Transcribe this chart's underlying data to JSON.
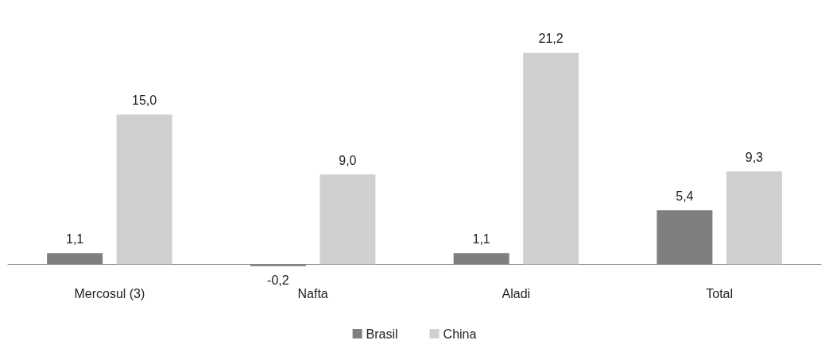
{
  "chart_data": {
    "type": "bar",
    "categories": [
      "Mercosul (3)",
      "Nafta",
      "Aladi",
      "Total"
    ],
    "series": [
      {
        "name": "Brasil",
        "color": "#7f7f7f",
        "values": [
          1.1,
          -0.2,
          1.1,
          5.4
        ],
        "value_labels": [
          "1,1",
          "-0,2",
          "1,1",
          "5,4"
        ]
      },
      {
        "name": "China",
        "color": "#d0d0d0",
        "values": [
          15.0,
          9.0,
          21.2,
          9.3
        ],
        "value_labels": [
          "15,0",
          "9,0",
          "21,2",
          "9,3"
        ]
      }
    ],
    "legend": "bottom",
    "grid": false
  }
}
